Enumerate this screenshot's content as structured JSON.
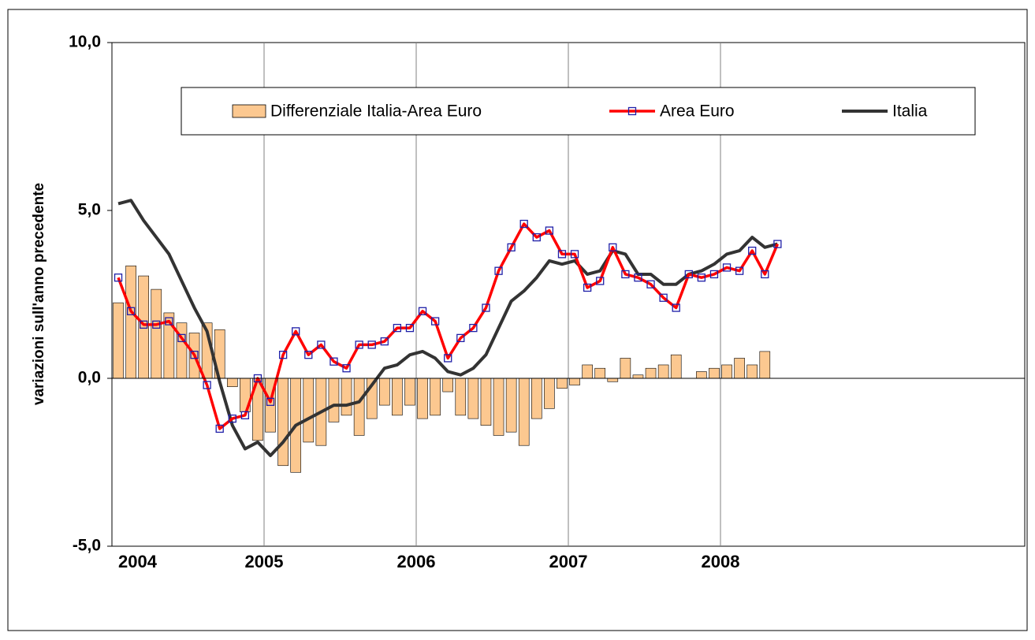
{
  "chart_data": {
    "type": "bar-line",
    "ylabel": "variazioni sull'anno precedente",
    "ylim": [
      -5,
      10
    ],
    "yticks": [
      {
        "value": -5,
        "label": "-5,0"
      },
      {
        "value": 0,
        "label": "0,0"
      },
      {
        "value": 5,
        "label": "5,0"
      },
      {
        "value": 10,
        "label": "10,0"
      }
    ],
    "xticks": [
      "2004",
      "2005",
      "2006",
      "2007",
      "2008"
    ],
    "categories": [
      null,
      null,
      null,
      null,
      null,
      null,
      null,
      null,
      null,
      null,
      null,
      null,
      null,
      null,
      null,
      null,
      null,
      null,
      null,
      null,
      null,
      null,
      null,
      null,
      null,
      null,
      null,
      null,
      null,
      null,
      null,
      null,
      null,
      null,
      null,
      null,
      null,
      null,
      null,
      null,
      null,
      null,
      null,
      null,
      null,
      null,
      null,
      null,
      null,
      null,
      null,
      null,
      null
    ],
    "series": [
      {
        "name": "Differenziale Italia-Area Euro",
        "kind": "bar",
        "color": "#fcc890",
        "values": [
          2.25,
          3.35,
          3.05,
          2.65,
          1.95,
          1.65,
          1.35,
          1.65,
          1.45,
          -0.25,
          -1.0,
          -1.85,
          -1.6,
          -2.6,
          -2.8,
          -1.9,
          -2.0,
          -1.3,
          -1.1,
          -1.7,
          -1.2,
          -0.8,
          -1.1,
          -0.8,
          -1.2,
          -1.1,
          -0.4,
          -1.1,
          -1.2,
          -1.4,
          -1.7,
          -1.6,
          -2.0,
          -1.2,
          -0.9,
          -0.3,
          -0.2,
          0.4,
          0.3,
          -0.1,
          0.6,
          0.1,
          0.3,
          0.4,
          0.7,
          0.0,
          0.2,
          0.3,
          0.4,
          0.6,
          0.4,
          0.8,
          0.0
        ]
      },
      {
        "name": "Area Euro",
        "kind": "line-marker",
        "color": "#ff0000",
        "values": [
          3.0,
          2.0,
          1.6,
          1.6,
          1.7,
          1.2,
          0.7,
          -0.2,
          -1.5,
          -1.2,
          -1.1,
          0.0,
          -0.7,
          0.7,
          1.4,
          0.7,
          1.0,
          0.5,
          0.3,
          1.0,
          1.0,
          1.1,
          1.5,
          1.5,
          2.0,
          1.7,
          0.6,
          1.2,
          1.5,
          2.1,
          3.2,
          3.9,
          4.6,
          4.2,
          4.4,
          3.7,
          3.7,
          2.7,
          2.9,
          3.9,
          3.1,
          3.0,
          2.8,
          2.4,
          2.1,
          3.1,
          3.0,
          3.1,
          3.3,
          3.2,
          3.8,
          3.1,
          4.0
        ]
      },
      {
        "name": "Italia",
        "kind": "line",
        "color": "#333333",
        "values": [
          5.2,
          5.3,
          4.7,
          4.2,
          3.7,
          2.9,
          2.1,
          1.4,
          -0.1,
          -1.4,
          -2.1,
          -1.9,
          -2.3,
          -1.9,
          -1.4,
          -1.2,
          -1.0,
          -0.8,
          -0.8,
          -0.7,
          -0.2,
          0.3,
          0.4,
          0.7,
          0.8,
          0.6,
          0.2,
          0.1,
          0.3,
          0.7,
          1.5,
          2.3,
          2.6,
          3.0,
          3.5,
          3.4,
          3.5,
          3.1,
          3.2,
          3.8,
          3.7,
          3.1,
          3.1,
          2.8,
          2.8,
          3.1,
          3.2,
          3.4,
          3.7,
          3.8,
          4.2,
          3.9,
          4.0
        ]
      }
    ]
  }
}
